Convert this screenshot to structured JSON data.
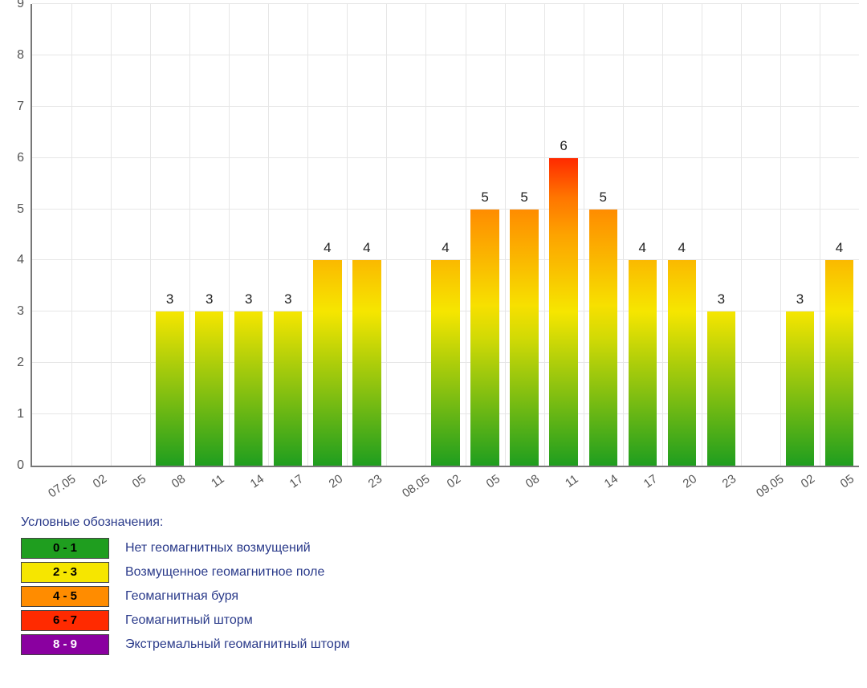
{
  "chart": {
    "type": "bar",
    "ylim": [
      0,
      9
    ],
    "ytick_step": 1,
    "yticks": [
      0,
      1,
      2,
      3,
      4,
      5,
      6,
      7,
      8,
      9
    ],
    "grid_color": "#e6e6e6",
    "axis_color": "#777777",
    "background_color": "#ffffff",
    "bar_width_ratio": 0.72,
    "label_fontsize": 17,
    "axis_fontsize": 16,
    "xlabel_fontsize": 15,
    "xlabel_rotation_deg": -35,
    "gradient_stops": [
      {
        "level": 0,
        "color": "#1f9e1f"
      },
      {
        "level": 3,
        "color": "#f6e600"
      },
      {
        "level": 5,
        "color": "#ff8c00"
      },
      {
        "level": 6,
        "color": "#ff2a00"
      },
      {
        "level": 9,
        "color": "#8a00a0"
      }
    ],
    "x_slots": [
      {
        "label": "07.05",
        "value": null
      },
      {
        "label": "02",
        "value": null
      },
      {
        "label": "05",
        "value": null
      },
      {
        "label": "08",
        "value": 3
      },
      {
        "label": "11",
        "value": 3
      },
      {
        "label": "14",
        "value": 3
      },
      {
        "label": "17",
        "value": 3
      },
      {
        "label": "20",
        "value": 4
      },
      {
        "label": "23",
        "value": 4
      },
      {
        "label": "08.05",
        "value": null
      },
      {
        "label": "02",
        "value": 4
      },
      {
        "label": "05",
        "value": 5
      },
      {
        "label": "08",
        "value": 5
      },
      {
        "label": "11",
        "value": 6
      },
      {
        "label": "14",
        "value": 5
      },
      {
        "label": "17",
        "value": 4
      },
      {
        "label": "20",
        "value": 4
      },
      {
        "label": "23",
        "value": 3
      },
      {
        "label": "09.05",
        "value": null
      },
      {
        "label": "02",
        "value": 3
      },
      {
        "label": "05",
        "value": 4
      }
    ]
  },
  "legend": {
    "title": "Условные обозначения:",
    "items": [
      {
        "range": "0 - 1",
        "color": "#1f9e1f",
        "text_color": "#000000",
        "desc": "Нет геомагнитных возмущений"
      },
      {
        "range": "2 - 3",
        "color": "#f6e600",
        "text_color": "#000000",
        "desc": "Возмущенное геомагнитное поле"
      },
      {
        "range": "4 - 5",
        "color": "#ff8c00",
        "text_color": "#000000",
        "desc": "Геомагнитная буря"
      },
      {
        "range": "6 - 7",
        "color": "#ff2a00",
        "text_color": "#000000",
        "desc": "Геомагнитный шторм"
      },
      {
        "range": "8 - 9",
        "color": "#8a00a0",
        "text_color": "#ffffff",
        "desc": "Экстремальный геомагнитный шторм"
      }
    ]
  }
}
